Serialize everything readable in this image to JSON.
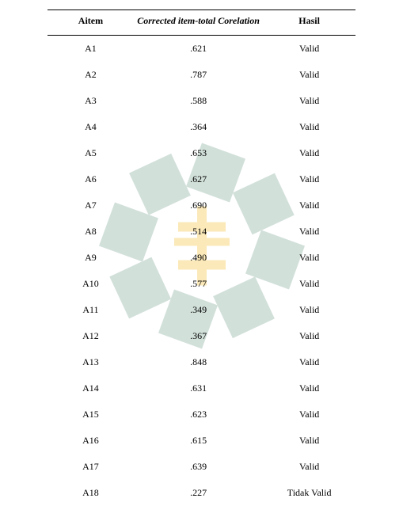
{
  "table": {
    "headers": {
      "item": "Aitem",
      "correlation": "Corrected item-total Corelation",
      "result": "Hasil"
    },
    "rows": [
      {
        "item": "A1",
        "corr": ".621",
        "result": "Valid"
      },
      {
        "item": "A2",
        "corr": ".787",
        "result": "Valid"
      },
      {
        "item": "A3",
        "corr": ".588",
        "result": "Valid"
      },
      {
        "item": "A4",
        "corr": ".364",
        "result": "Valid"
      },
      {
        "item": "A5",
        "corr": ".653",
        "result": "Valid"
      },
      {
        "item": "A6",
        "corr": ".627",
        "result": "Valid"
      },
      {
        "item": "A7",
        "corr": ".690",
        "result": "Valid"
      },
      {
        "item": "A8",
        "corr": ".514",
        "result": "Valid"
      },
      {
        "item": "A9",
        "corr": ".490",
        "result": "Valid"
      },
      {
        "item": "A10",
        "corr": ".577",
        "result": "Valid"
      },
      {
        "item": "A11",
        "corr": ".349",
        "result": "Valid"
      },
      {
        "item": "A12",
        "corr": ".367",
        "result": "Valid"
      },
      {
        "item": "A13",
        "corr": ".848",
        "result": "Valid"
      },
      {
        "item": "A14",
        "corr": ".631",
        "result": "Valid"
      },
      {
        "item": "A15",
        "corr": ".623",
        "result": "Valid"
      },
      {
        "item": "A16",
        "corr": ".615",
        "result": "Valid"
      },
      {
        "item": "A17",
        "corr": ".639",
        "result": "Valid"
      },
      {
        "item": "A18",
        "corr": ".227",
        "result": "Tidak Valid"
      }
    ]
  },
  "watermark": {
    "shape_color": "#7fa896",
    "accent_color": "#f5c23a",
    "size": 300
  }
}
